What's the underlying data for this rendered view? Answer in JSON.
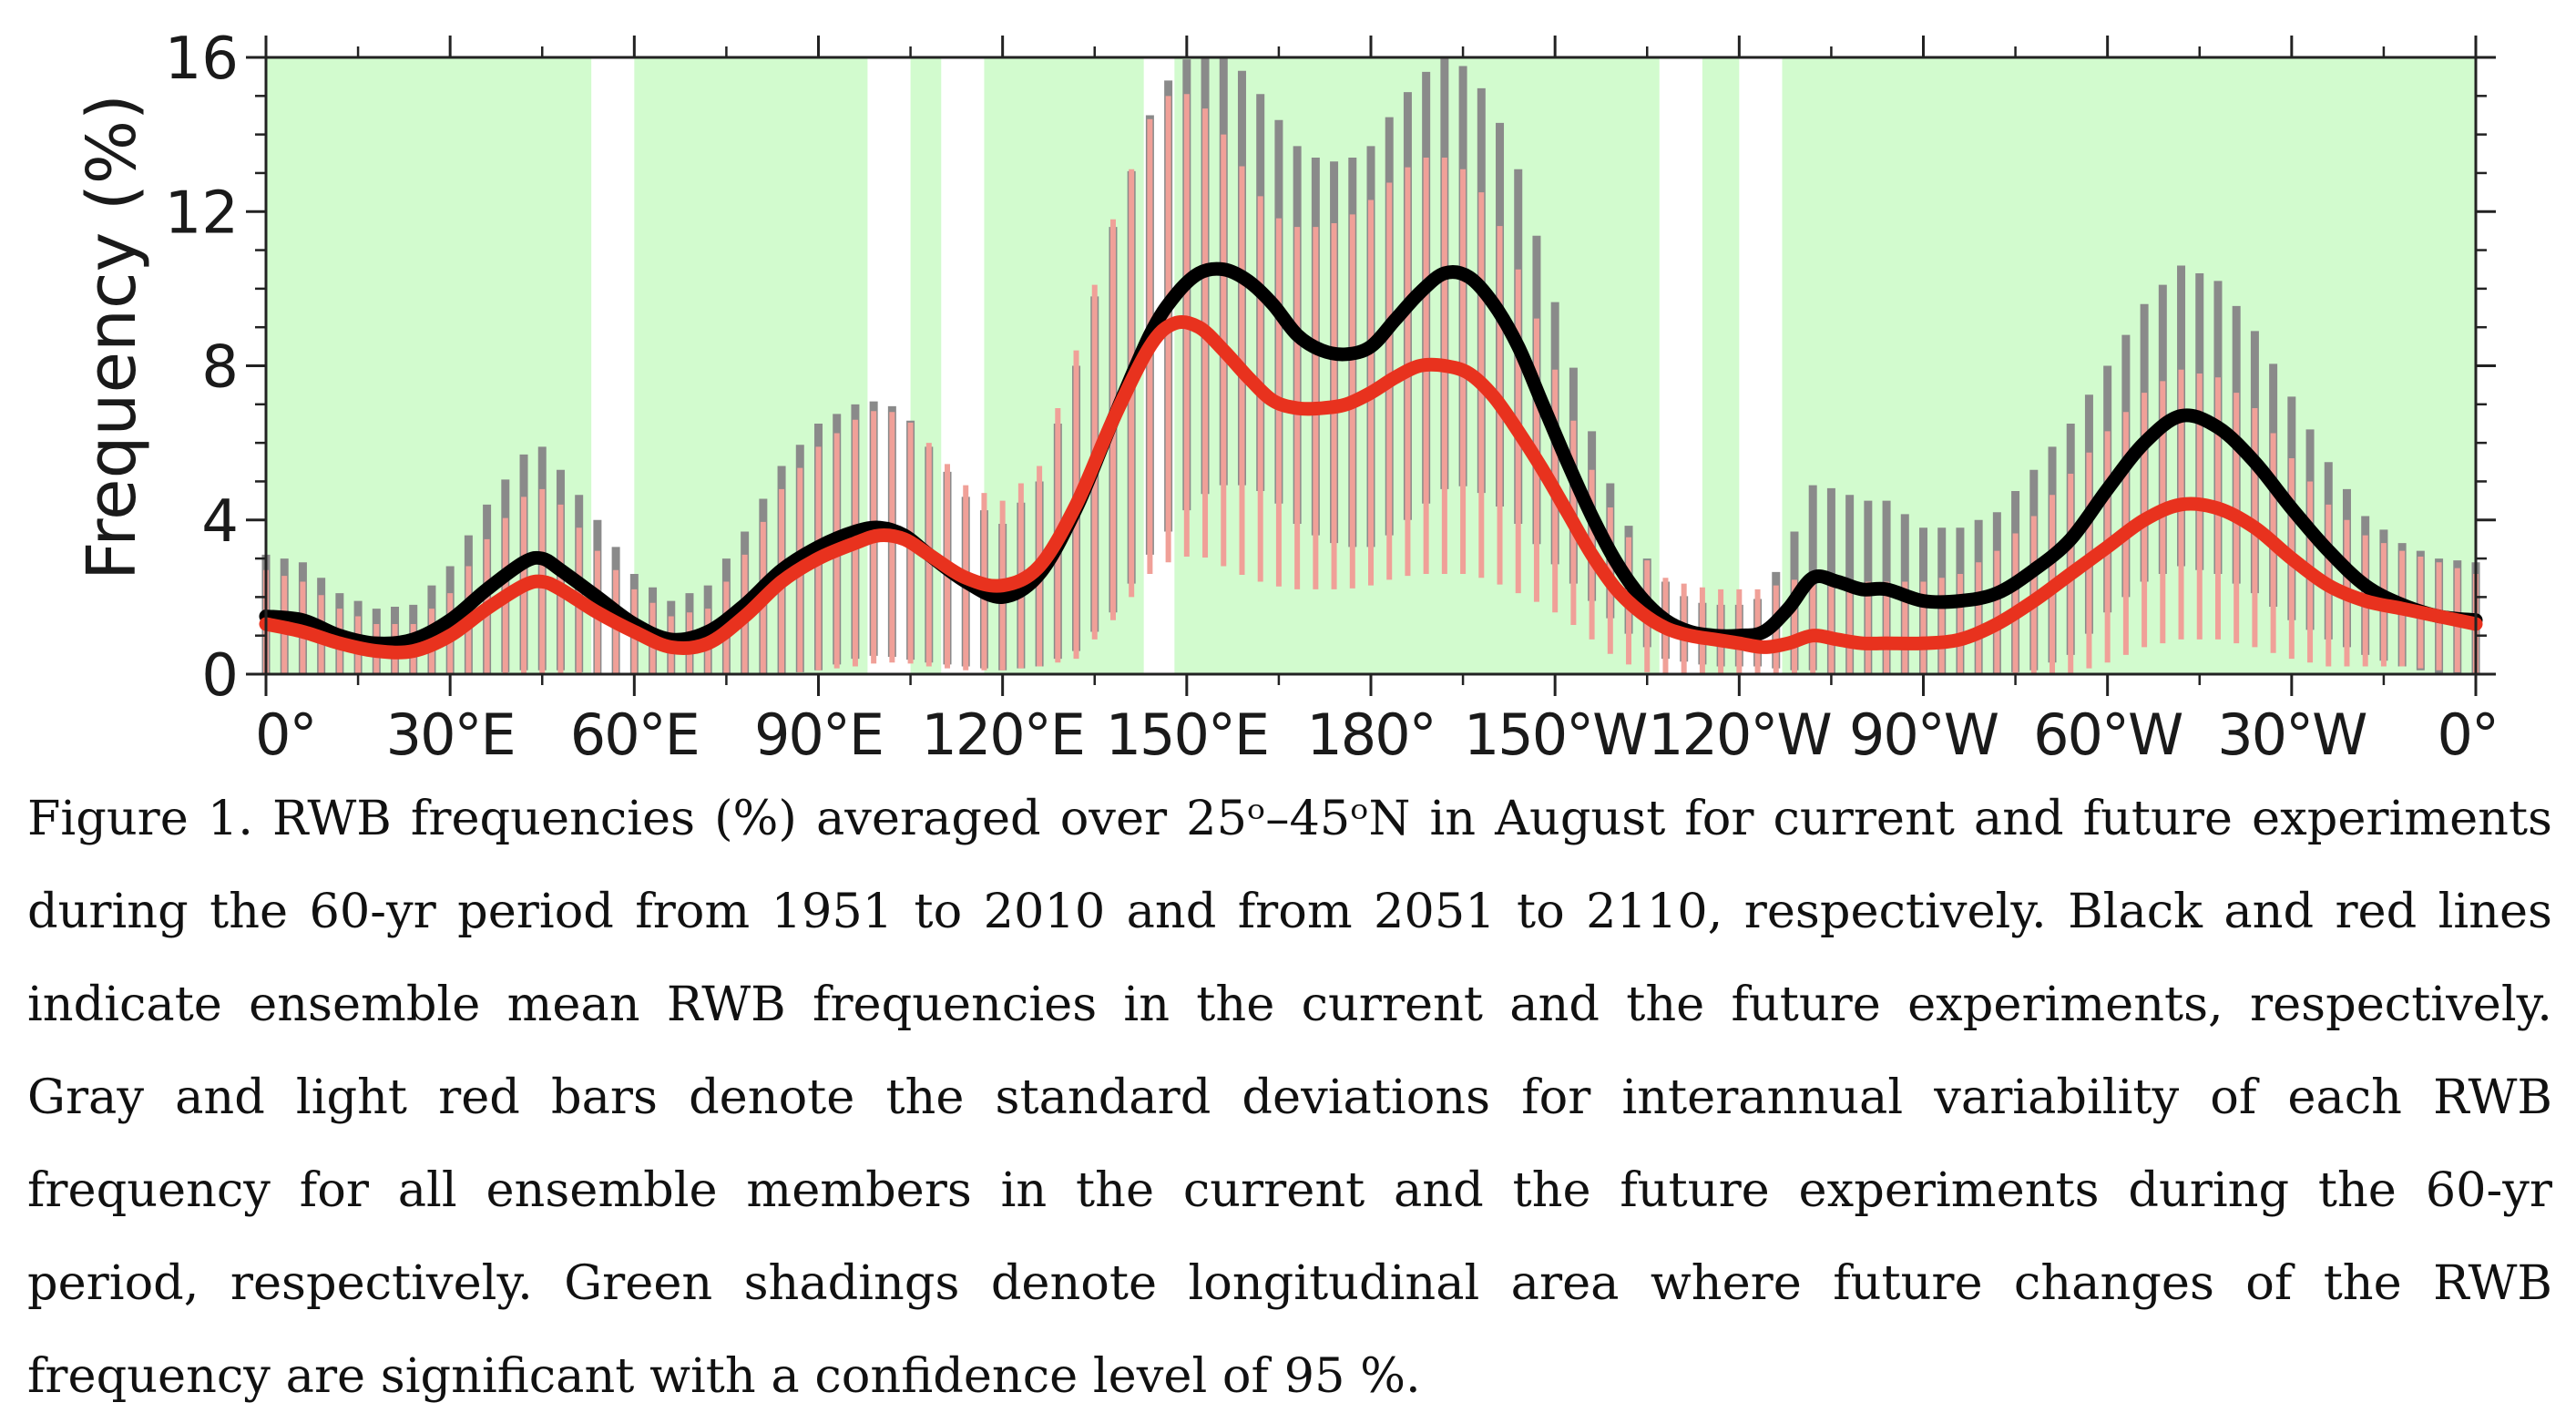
{
  "chart_data": {
    "type": "line",
    "ylabel": "Frequency (%)",
    "xlabel": "",
    "ylim": [
      0,
      16
    ],
    "yticks": [
      0,
      4,
      8,
      12,
      16
    ],
    "xlim": [
      0,
      360
    ],
    "xticks": [
      {
        "lon": 0,
        "label": "0°"
      },
      {
        "lon": 30,
        "label": "30°E"
      },
      {
        "lon": 60,
        "label": "60°E"
      },
      {
        "lon": 90,
        "label": "90°E"
      },
      {
        "lon": 120,
        "label": "120°E"
      },
      {
        "lon": 150,
        "label": "150°E"
      },
      {
        "lon": 180,
        "label": "180°"
      },
      {
        "lon": 210,
        "label": "150°W"
      },
      {
        "lon": 240,
        "label": "120°W"
      },
      {
        "lon": 270,
        "label": "90°W"
      },
      {
        "lon": 300,
        "label": "60°W"
      },
      {
        "lon": 330,
        "label": "30°W"
      },
      {
        "lon": 360,
        "label": "0°"
      }
    ],
    "significant_regions": [
      [
        0,
        53
      ],
      [
        60,
        98
      ],
      [
        105,
        110
      ],
      [
        117,
        143
      ],
      [
        148,
        227
      ],
      [
        234,
        240
      ],
      [
        247,
        360
      ]
    ],
    "grid": false,
    "legend": "none",
    "colors": {
      "current": "#000000",
      "future": "#e8321e",
      "current_bars": "#8a8a8a",
      "future_bars": "#f0a098",
      "significance": "#d2fbce"
    },
    "series": [
      {
        "x": [
          0,
          6,
          12,
          18,
          24,
          30,
          36,
          42,
          45,
          48,
          54,
          60,
          66,
          72,
          78,
          84,
          90,
          96,
          100,
          104,
          108,
          114,
          120,
          126,
          132,
          138,
          144,
          148,
          152,
          156,
          160,
          164,
          168,
          172,
          176,
          180,
          184,
          188,
          192,
          196,
          200,
          204,
          208,
          212,
          216,
          220,
          224,
          228,
          232,
          236,
          240,
          244,
          248,
          252,
          256,
          260,
          264,
          270,
          276,
          282,
          288,
          294,
          300,
          306,
          312,
          318,
          324,
          330,
          336,
          342,
          348,
          354,
          360
        ],
        "values": [
          1.5,
          1.4,
          1.0,
          0.8,
          0.9,
          1.4,
          2.2,
          2.9,
          3.0,
          2.7,
          2.0,
          1.3,
          0.9,
          1.1,
          1.8,
          2.7,
          3.3,
          3.7,
          3.8,
          3.6,
          3.1,
          2.4,
          2.0,
          2.6,
          4.3,
          6.6,
          8.8,
          9.8,
          10.4,
          10.5,
          10.2,
          9.6,
          8.8,
          8.4,
          8.3,
          8.5,
          9.2,
          9.9,
          10.4,
          10.3,
          9.6,
          8.5,
          7.0,
          5.5,
          4.1,
          2.9,
          2.0,
          1.4,
          1.1,
          1.0,
          1.0,
          1.1,
          1.7,
          2.5,
          2.4,
          2.2,
          2.2,
          1.9,
          1.9,
          2.1,
          2.7,
          3.5,
          4.8,
          6.0,
          6.7,
          6.4,
          5.5,
          4.3,
          3.2,
          2.3,
          1.8,
          1.5,
          1.4
        ]
      },
      {
        "x": [
          0,
          6,
          12,
          18,
          24,
          30,
          36,
          42,
          45,
          48,
          54,
          60,
          66,
          72,
          78,
          84,
          90,
          96,
          100,
          104,
          108,
          114,
          120,
          126,
          132,
          138,
          144,
          148,
          152,
          156,
          160,
          164,
          168,
          172,
          176,
          180,
          184,
          188,
          192,
          196,
          200,
          204,
          208,
          212,
          216,
          220,
          224,
          228,
          232,
          236,
          240,
          244,
          248,
          252,
          256,
          260,
          264,
          270,
          276,
          282,
          288,
          294,
          300,
          306,
          312,
          318,
          324,
          330,
          336,
          342,
          348,
          354,
          360
        ],
        "values": [
          1.3,
          1.1,
          0.8,
          0.6,
          0.6,
          1.0,
          1.7,
          2.3,
          2.4,
          2.2,
          1.6,
          1.1,
          0.7,
          0.8,
          1.5,
          2.4,
          3.0,
          3.4,
          3.6,
          3.5,
          3.1,
          2.5,
          2.3,
          2.8,
          4.4,
          6.6,
          8.5,
          9.1,
          9.0,
          8.4,
          7.7,
          7.1,
          6.9,
          6.9,
          7.0,
          7.3,
          7.7,
          8.0,
          8.0,
          7.8,
          7.2,
          6.3,
          5.3,
          4.2,
          3.1,
          2.2,
          1.6,
          1.2,
          1.0,
          0.9,
          0.8,
          0.7,
          0.8,
          1.0,
          0.9,
          0.8,
          0.8,
          0.8,
          0.9,
          1.3,
          1.9,
          2.6,
          3.3,
          4.0,
          4.4,
          4.3,
          3.8,
          3.0,
          2.3,
          1.9,
          1.7,
          1.5,
          1.3
        ]
      }
    ],
    "bars": [
      {
        "x": [
          0,
          6,
          12,
          18,
          24,
          30,
          36,
          42,
          45,
          48,
          54,
          60,
          66,
          72,
          78,
          84,
          90,
          96,
          100,
          104,
          108,
          114,
          120,
          126,
          132,
          138,
          144,
          148,
          152,
          156,
          160,
          164,
          168,
          172,
          176,
          180,
          184,
          188,
          192,
          196,
          200,
          204,
          208,
          212,
          216,
          220,
          224,
          228,
          232,
          236,
          240,
          244,
          248,
          252,
          256,
          260,
          264,
          270,
          276,
          282,
          288,
          294,
          300,
          306,
          312,
          318,
          324,
          330,
          336,
          342,
          348,
          354,
          360
        ],
        "half_width": [
          1.6,
          1.5,
          1.1,
          0.9,
          0.9,
          1.4,
          2.2,
          2.8,
          2.9,
          2.6,
          2.0,
          1.3,
          1.0,
          1.2,
          1.9,
          2.7,
          3.2,
          3.3,
          3.3,
          3.2,
          2.8,
          2.2,
          1.9,
          2.4,
          3.7,
          5.0,
          5.7,
          5.9,
          5.8,
          5.6,
          5.3,
          5.0,
          4.9,
          4.9,
          5.0,
          5.2,
          5.5,
          5.6,
          5.6,
          5.4,
          5.1,
          4.6,
          3.8,
          3.0,
          2.2,
          1.6,
          1.2,
          1.0,
          0.8,
          0.8,
          0.8,
          0.9,
          1.6,
          2.4,
          2.4,
          2.3,
          2.3,
          1.9,
          1.9,
          2.1,
          2.6,
          3.0,
          3.2,
          3.6,
          3.9,
          3.8,
          3.4,
          2.9,
          2.3,
          1.8,
          1.6,
          1.5,
          1.5
        ]
      },
      {
        "x": [
          0,
          6,
          12,
          18,
          24,
          30,
          36,
          42,
          45,
          48,
          54,
          60,
          66,
          72,
          78,
          84,
          90,
          96,
          100,
          104,
          108,
          114,
          120,
          126,
          132,
          138,
          144,
          148,
          152,
          156,
          160,
          164,
          168,
          172,
          176,
          180,
          184,
          188,
          192,
          196,
          200,
          204,
          208,
          212,
          216,
          220,
          224,
          228,
          232,
          236,
          240,
          244,
          248,
          252,
          256,
          260,
          264,
          270,
          276,
          282,
          288,
          294,
          300,
          306,
          312,
          318,
          324,
          330,
          336,
          342,
          348,
          354,
          360
        ],
        "half_width": [
          1.4,
          1.3,
          0.9,
          0.7,
          0.7,
          1.1,
          1.8,
          2.3,
          2.4,
          2.2,
          1.6,
          1.1,
          0.8,
          0.9,
          1.6,
          2.4,
          2.9,
          3.2,
          3.3,
          3.2,
          2.9,
          2.4,
          2.2,
          2.6,
          4.0,
          5.2,
          5.9,
          6.1,
          5.9,
          5.6,
          5.2,
          4.8,
          4.7,
          4.7,
          4.8,
          5.0,
          5.2,
          5.4,
          5.4,
          5.2,
          4.8,
          4.2,
          3.5,
          2.8,
          2.2,
          1.8,
          1.5,
          1.3,
          1.3,
          1.3,
          1.4,
          1.5,
          1.6,
          1.6,
          1.6,
          1.6,
          1.6,
          1.6,
          1.7,
          1.9,
          2.2,
          2.6,
          3.0,
          3.3,
          3.5,
          3.4,
          3.1,
          2.6,
          2.1,
          1.7,
          1.5,
          1.4,
          1.3
        ]
      }
    ]
  },
  "caption": [
    "Figure 1. RWB frequencies (%) averaged over 25ᵒ–45ᵒN in August for current and future experiments",
    "during the 60-yr period from 1951 to 2010 and from 2051 to 2110, respectively. Black and red lines",
    "indicate ensemble mean RWB frequencies in the current and the future experiments, respectively.",
    "Gray and light red bars denote the standard deviations for interannual variability of each RWB",
    "frequency for all ensemble members in the current and the future experiments during the 60-yr",
    "period, respectively. Green shadings denote longitudinal area where future changes of the RWB",
    "frequency are significant with a confidence level of 95 %."
  ]
}
